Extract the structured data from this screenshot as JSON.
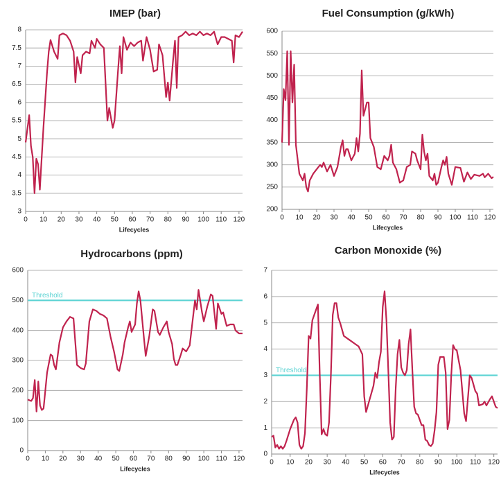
{
  "chart_data": [
    {
      "type": "line",
      "title": "IMEP (bar)",
      "x_label": "Lifecycles",
      "color": "#c0234e",
      "xlim": [
        0,
        122
      ],
      "xticks": [
        0,
        10,
        20,
        30,
        40,
        50,
        60,
        70,
        80,
        90,
        100,
        110,
        120
      ],
      "ylim": [
        3,
        8
      ],
      "yticks": [
        3,
        3.5,
        4,
        4.5,
        5,
        5.5,
        6,
        6.5,
        7,
        7.5,
        8
      ],
      "grid": true,
      "x": [
        0,
        2,
        3,
        4,
        5,
        6,
        7,
        8,
        10,
        12,
        13,
        14,
        16,
        18,
        19,
        21,
        23,
        25,
        27,
        28,
        29,
        31,
        32,
        34,
        36,
        37,
        39,
        40,
        42,
        44,
        45,
        46,
        47,
        49,
        50,
        52,
        53,
        54,
        55,
        57,
        59,
        61,
        63,
        65,
        66,
        68,
        70,
        72,
        74,
        75,
        77,
        79,
        80,
        81,
        83,
        84,
        85,
        86,
        88,
        90,
        92,
        94,
        96,
        98,
        100,
        102,
        104,
        106,
        108,
        110,
        112,
        114,
        116,
        117,
        118,
        120,
        122
      ],
      "values": [
        4.9,
        5.65,
        4.8,
        4.5,
        3.5,
        4.45,
        4.3,
        3.6,
        5.3,
        6.8,
        7.4,
        7.72,
        7.4,
        7.2,
        7.85,
        7.9,
        7.85,
        7.7,
        7.4,
        6.55,
        7.25,
        6.8,
        7.3,
        7.4,
        7.35,
        7.7,
        7.5,
        7.75,
        7.6,
        7.5,
        6.5,
        5.5,
        5.85,
        5.3,
        5.5,
        6.9,
        7.55,
        6.8,
        7.8,
        7.45,
        7.65,
        7.55,
        7.65,
        7.7,
        7.15,
        7.8,
        7.45,
        6.85,
        6.9,
        7.6,
        7.3,
        6.15,
        6.55,
        6.05,
        7.2,
        7.7,
        6.4,
        7.8,
        7.85,
        7.95,
        7.85,
        7.9,
        7.85,
        7.95,
        7.85,
        7.9,
        7.85,
        7.95,
        7.6,
        7.8,
        7.8,
        7.75,
        7.7,
        7.1,
        7.85,
        7.8,
        7.95
      ]
    },
    {
      "type": "line",
      "title": "Fuel Consumption (g/kWh)",
      "x_label": "Lifecycles",
      "color": "#c0234e",
      "xlim": [
        0,
        122
      ],
      "xticks": [
        0,
        10,
        20,
        30,
        40,
        50,
        60,
        70,
        80,
        90,
        100,
        110,
        120
      ],
      "ylim": [
        200,
        600
      ],
      "yticks": [
        200,
        250,
        300,
        350,
        400,
        450,
        500,
        550,
        600
      ],
      "grid": true,
      "x": [
        0,
        1,
        2,
        3,
        4,
        5,
        6,
        7,
        8,
        10,
        12,
        13,
        14,
        15,
        16,
        18,
        20,
        22,
        23,
        24,
        26,
        28,
        30,
        32,
        34,
        35,
        36,
        37,
        38,
        40,
        42,
        43,
        44,
        45,
        46,
        47,
        49,
        50,
        51,
        53,
        55,
        57,
        58,
        59,
        61,
        62,
        63,
        64,
        66,
        68,
        70,
        72,
        74,
        75,
        77,
        78,
        79,
        80,
        81,
        82,
        83,
        84,
        85,
        86,
        87,
        88,
        89,
        90,
        92,
        93,
        94,
        95,
        96,
        98,
        100,
        103,
        105,
        107,
        109,
        111,
        114,
        116,
        117,
        119,
        121,
        122
      ],
      "values": [
        350,
        470,
        445,
        555,
        345,
        555,
        440,
        525,
        345,
        280,
        265,
        280,
        250,
        240,
        265,
        280,
        290,
        300,
        295,
        305,
        285,
        300,
        275,
        295,
        340,
        355,
        320,
        335,
        335,
        310,
        325,
        360,
        330,
        370,
        512,
        410,
        440,
        440,
        360,
        340,
        295,
        290,
        305,
        320,
        310,
        320,
        345,
        305,
        290,
        260,
        265,
        295,
        300,
        330,
        325,
        310,
        300,
        290,
        368,
        330,
        310,
        325,
        275,
        270,
        265,
        280,
        255,
        260,
        295,
        310,
        300,
        318,
        280,
        255,
        295,
        293,
        262,
        283,
        268,
        278,
        275,
        280,
        272,
        280,
        270,
        273
      ]
    },
    {
      "type": "line",
      "title": "Hydrocarbons (ppm)",
      "x_label": "Lifecycles",
      "color": "#c0234e",
      "xlim": [
        0,
        122
      ],
      "xticks": [
        0,
        10,
        20,
        30,
        40,
        50,
        60,
        70,
        80,
        90,
        100,
        110,
        120
      ],
      "ylim": [
        0,
        600
      ],
      "yticks": [
        0,
        100,
        200,
        300,
        400,
        500,
        600
      ],
      "grid": true,
      "threshold": {
        "label": "Threshold",
        "value": 500,
        "color": "#5cd3d3"
      },
      "x": [
        0,
        2,
        3,
        4,
        5,
        6,
        7,
        8,
        9,
        10,
        11,
        13,
        14,
        15,
        16,
        18,
        20,
        22,
        24,
        26,
        28,
        30,
        32,
        33,
        35,
        37,
        39,
        41,
        43,
        45,
        47,
        49,
        51,
        52,
        54,
        55,
        57,
        58,
        59,
        61,
        62,
        63,
        64,
        66,
        67,
        69,
        71,
        72,
        74,
        75,
        77,
        79,
        80,
        82,
        83,
        84,
        85,
        87,
        88,
        90,
        92,
        94,
        95,
        96,
        97,
        99,
        100,
        102,
        104,
        105,
        106,
        107,
        108,
        110,
        111,
        113,
        115,
        117,
        118,
        120,
        122
      ],
      "values": [
        170,
        165,
        175,
        235,
        130,
        230,
        150,
        135,
        140,
        200,
        260,
        320,
        315,
        285,
        270,
        360,
        410,
        430,
        445,
        440,
        285,
        275,
        270,
        290,
        430,
        470,
        465,
        455,
        450,
        440,
        380,
        330,
        270,
        265,
        320,
        360,
        410,
        430,
        395,
        420,
        490,
        530,
        500,
        375,
        315,
        380,
        470,
        465,
        395,
        385,
        410,
        430,
        395,
        355,
        305,
        285,
        285,
        320,
        340,
        330,
        350,
        450,
        500,
        470,
        535,
        460,
        430,
        480,
        520,
        515,
        460,
        405,
        490,
        455,
        460,
        415,
        420,
        420,
        400,
        390,
        390
      ]
    },
    {
      "type": "line",
      "title": "Carbon Monoxide (%)",
      "x_label": "Lifecycles",
      "color": "#c0234e",
      "xlim": [
        0,
        122
      ],
      "xticks": [
        0,
        10,
        20,
        30,
        40,
        50,
        60,
        70,
        80,
        90,
        100,
        110,
        120
      ],
      "ylim": [
        0,
        7
      ],
      "yticks": [
        0,
        1,
        2,
        3,
        4,
        5,
        6,
        7
      ],
      "grid": true,
      "threshold": {
        "label": "Threshold",
        "value": 3,
        "color": "#5cd3d3"
      },
      "x": [
        0,
        1,
        2,
        3,
        4,
        5,
        6,
        7,
        8,
        10,
        12,
        13,
        14,
        15,
        16,
        17,
        18,
        19,
        20,
        21,
        22,
        24,
        25,
        26,
        27,
        28,
        29,
        30,
        31,
        32,
        33,
        34,
        35,
        36,
        37,
        39,
        41,
        43,
        45,
        47,
        49,
        50,
        51,
        53,
        55,
        56,
        57,
        58,
        59,
        60,
        61,
        62,
        63,
        64,
        65,
        66,
        67,
        68,
        69,
        70,
        71,
        72,
        73,
        74,
        75,
        76,
        77,
        78,
        79,
        80,
        81,
        82,
        83,
        84,
        85,
        86,
        87,
        88,
        89,
        90,
        91,
        93,
        94,
        95,
        96,
        97,
        98,
        99,
        100,
        102,
        104,
        105,
        107,
        108,
        110,
        111,
        112,
        114,
        115,
        116,
        118,
        119,
        120,
        121,
        122
      ],
      "values": [
        0.65,
        0.7,
        0.25,
        0.35,
        0.2,
        0.3,
        0.2,
        0.3,
        0.5,
        0.95,
        1.3,
        1.4,
        1.2,
        0.35,
        0.2,
        0.3,
        0.8,
        2.5,
        4.5,
        4.4,
        5.1,
        5.5,
        5.7,
        3.0,
        0.75,
        0.95,
        0.75,
        0.7,
        1.2,
        3.0,
        5.3,
        5.75,
        5.75,
        5.2,
        5.0,
        4.5,
        4.4,
        4.3,
        4.2,
        4.1,
        3.8,
        2.2,
        1.6,
        2.1,
        2.6,
        3.1,
        2.9,
        3.5,
        3.9,
        5.6,
        6.2,
        5.1,
        3.2,
        1.2,
        0.55,
        0.65,
        2.5,
        3.8,
        4.35,
        3.3,
        3.1,
        3.0,
        3.2,
        4.2,
        4.75,
        3.2,
        1.8,
        1.55,
        1.5,
        1.3,
        1.1,
        1.1,
        0.55,
        0.5,
        0.35,
        0.3,
        0.4,
        0.9,
        1.6,
        3.4,
        3.7,
        3.7,
        3.1,
        0.95,
        1.3,
        3.0,
        4.15,
        4.0,
        3.95,
        3.2,
        1.55,
        1.25,
        3.0,
        2.9,
        2.4,
        2.3,
        1.85,
        1.9,
        2.0,
        1.85,
        2.1,
        2.2,
        2.0,
        1.8,
        1.75
      ]
    }
  ]
}
